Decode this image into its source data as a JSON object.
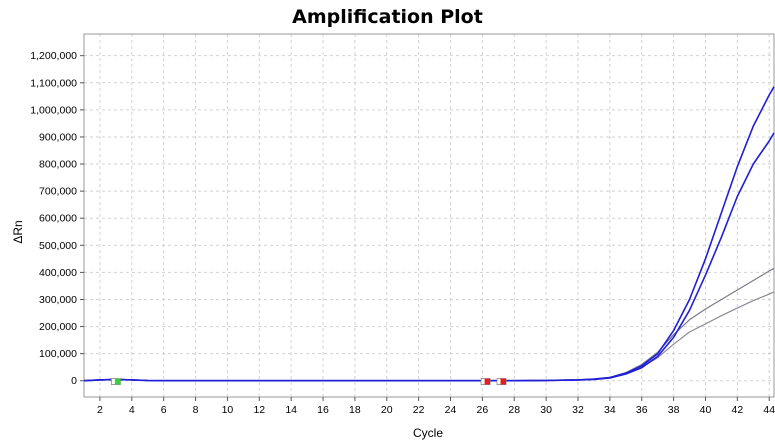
{
  "chart_data": {
    "type": "line",
    "title": "Amplification Plot",
    "xlabel": "Cycle",
    "ylabel": "ΔRn",
    "xlim": [
      1,
      44.3
    ],
    "ylim": [
      -60000,
      1280000
    ],
    "x_ticks": [
      2,
      4,
      6,
      8,
      10,
      12,
      14,
      16,
      18,
      20,
      22,
      24,
      26,
      28,
      30,
      32,
      34,
      36,
      38,
      40,
      42,
      44
    ],
    "y_ticks": [
      0,
      100000,
      200000,
      300000,
      400000,
      500000,
      600000,
      700000,
      800000,
      900000,
      1000000,
      1100000,
      1200000
    ],
    "y_tick_labels": [
      "0",
      "100,000",
      "200,000",
      "300,000",
      "400,000",
      "500,000",
      "600,000",
      "700,000",
      "800,000",
      "900,000",
      "1,000,000",
      "1,100,000",
      "1,200,000"
    ],
    "grid": true,
    "x": [
      1,
      2,
      3,
      4,
      5,
      6,
      7,
      8,
      9,
      10,
      11,
      12,
      13,
      14,
      15,
      16,
      17,
      18,
      19,
      20,
      21,
      22,
      23,
      24,
      25,
      26,
      27,
      28,
      29,
      30,
      31,
      32,
      33,
      34,
      35,
      36,
      37,
      38,
      39,
      40,
      41,
      42,
      43,
      44,
      44.3
    ],
    "series": [
      {
        "color": "#1f1fd6",
        "values": [
          0,
          3000,
          5000,
          3000,
          1000,
          0,
          0,
          0,
          0,
          0,
          0,
          0,
          0,
          0,
          0,
          0,
          0,
          0,
          0,
          0,
          0,
          0,
          0,
          0,
          0,
          0,
          0,
          0,
          500,
          1000,
          2000,
          3000,
          6000,
          12000,
          28000,
          55000,
          100000,
          185000,
          300000,
          450000,
          620000,
          790000,
          940000,
          1055000,
          1085000
        ]
      },
      {
        "color": "#1f1fd6",
        "values": [
          0,
          3000,
          5000,
          3000,
          1000,
          0,
          0,
          0,
          0,
          0,
          0,
          0,
          0,
          0,
          0,
          0,
          0,
          0,
          0,
          0,
          0,
          0,
          0,
          0,
          0,
          0,
          0,
          0,
          500,
          1000,
          2000,
          3000,
          5000,
          10000,
          25000,
          48000,
          90000,
          160000,
          260000,
          390000,
          530000,
          680000,
          800000,
          885000,
          915000
        ]
      },
      {
        "color": "#7a7a8a",
        "values": [
          0,
          3000,
          5000,
          3000,
          1000,
          0,
          0,
          0,
          0,
          0,
          0,
          0,
          0,
          0,
          0,
          0,
          0,
          0,
          0,
          0,
          0,
          0,
          0,
          0,
          0,
          0,
          0,
          0,
          500,
          1000,
          2000,
          3000,
          6000,
          12000,
          30000,
          60000,
          105000,
          170000,
          225000,
          265000,
          300000,
          335000,
          370000,
          405000,
          415000
        ]
      },
      {
        "color": "#8a8a96",
        "values": [
          0,
          3000,
          5000,
          3000,
          1000,
          0,
          0,
          0,
          0,
          0,
          0,
          0,
          0,
          0,
          0,
          0,
          0,
          0,
          0,
          0,
          0,
          0,
          0,
          0,
          0,
          0,
          0,
          0,
          500,
          1000,
          2000,
          3000,
          5000,
          10000,
          25000,
          50000,
          85000,
          135000,
          180000,
          210000,
          240000,
          268000,
          296000,
          320000,
          328000
        ]
      }
    ],
    "markers": [
      {
        "x": 3,
        "color": "#39d13b"
      },
      {
        "x": 26.2,
        "color": "#e02020"
      },
      {
        "x": 27.2,
        "color": "#e02020"
      }
    ]
  }
}
